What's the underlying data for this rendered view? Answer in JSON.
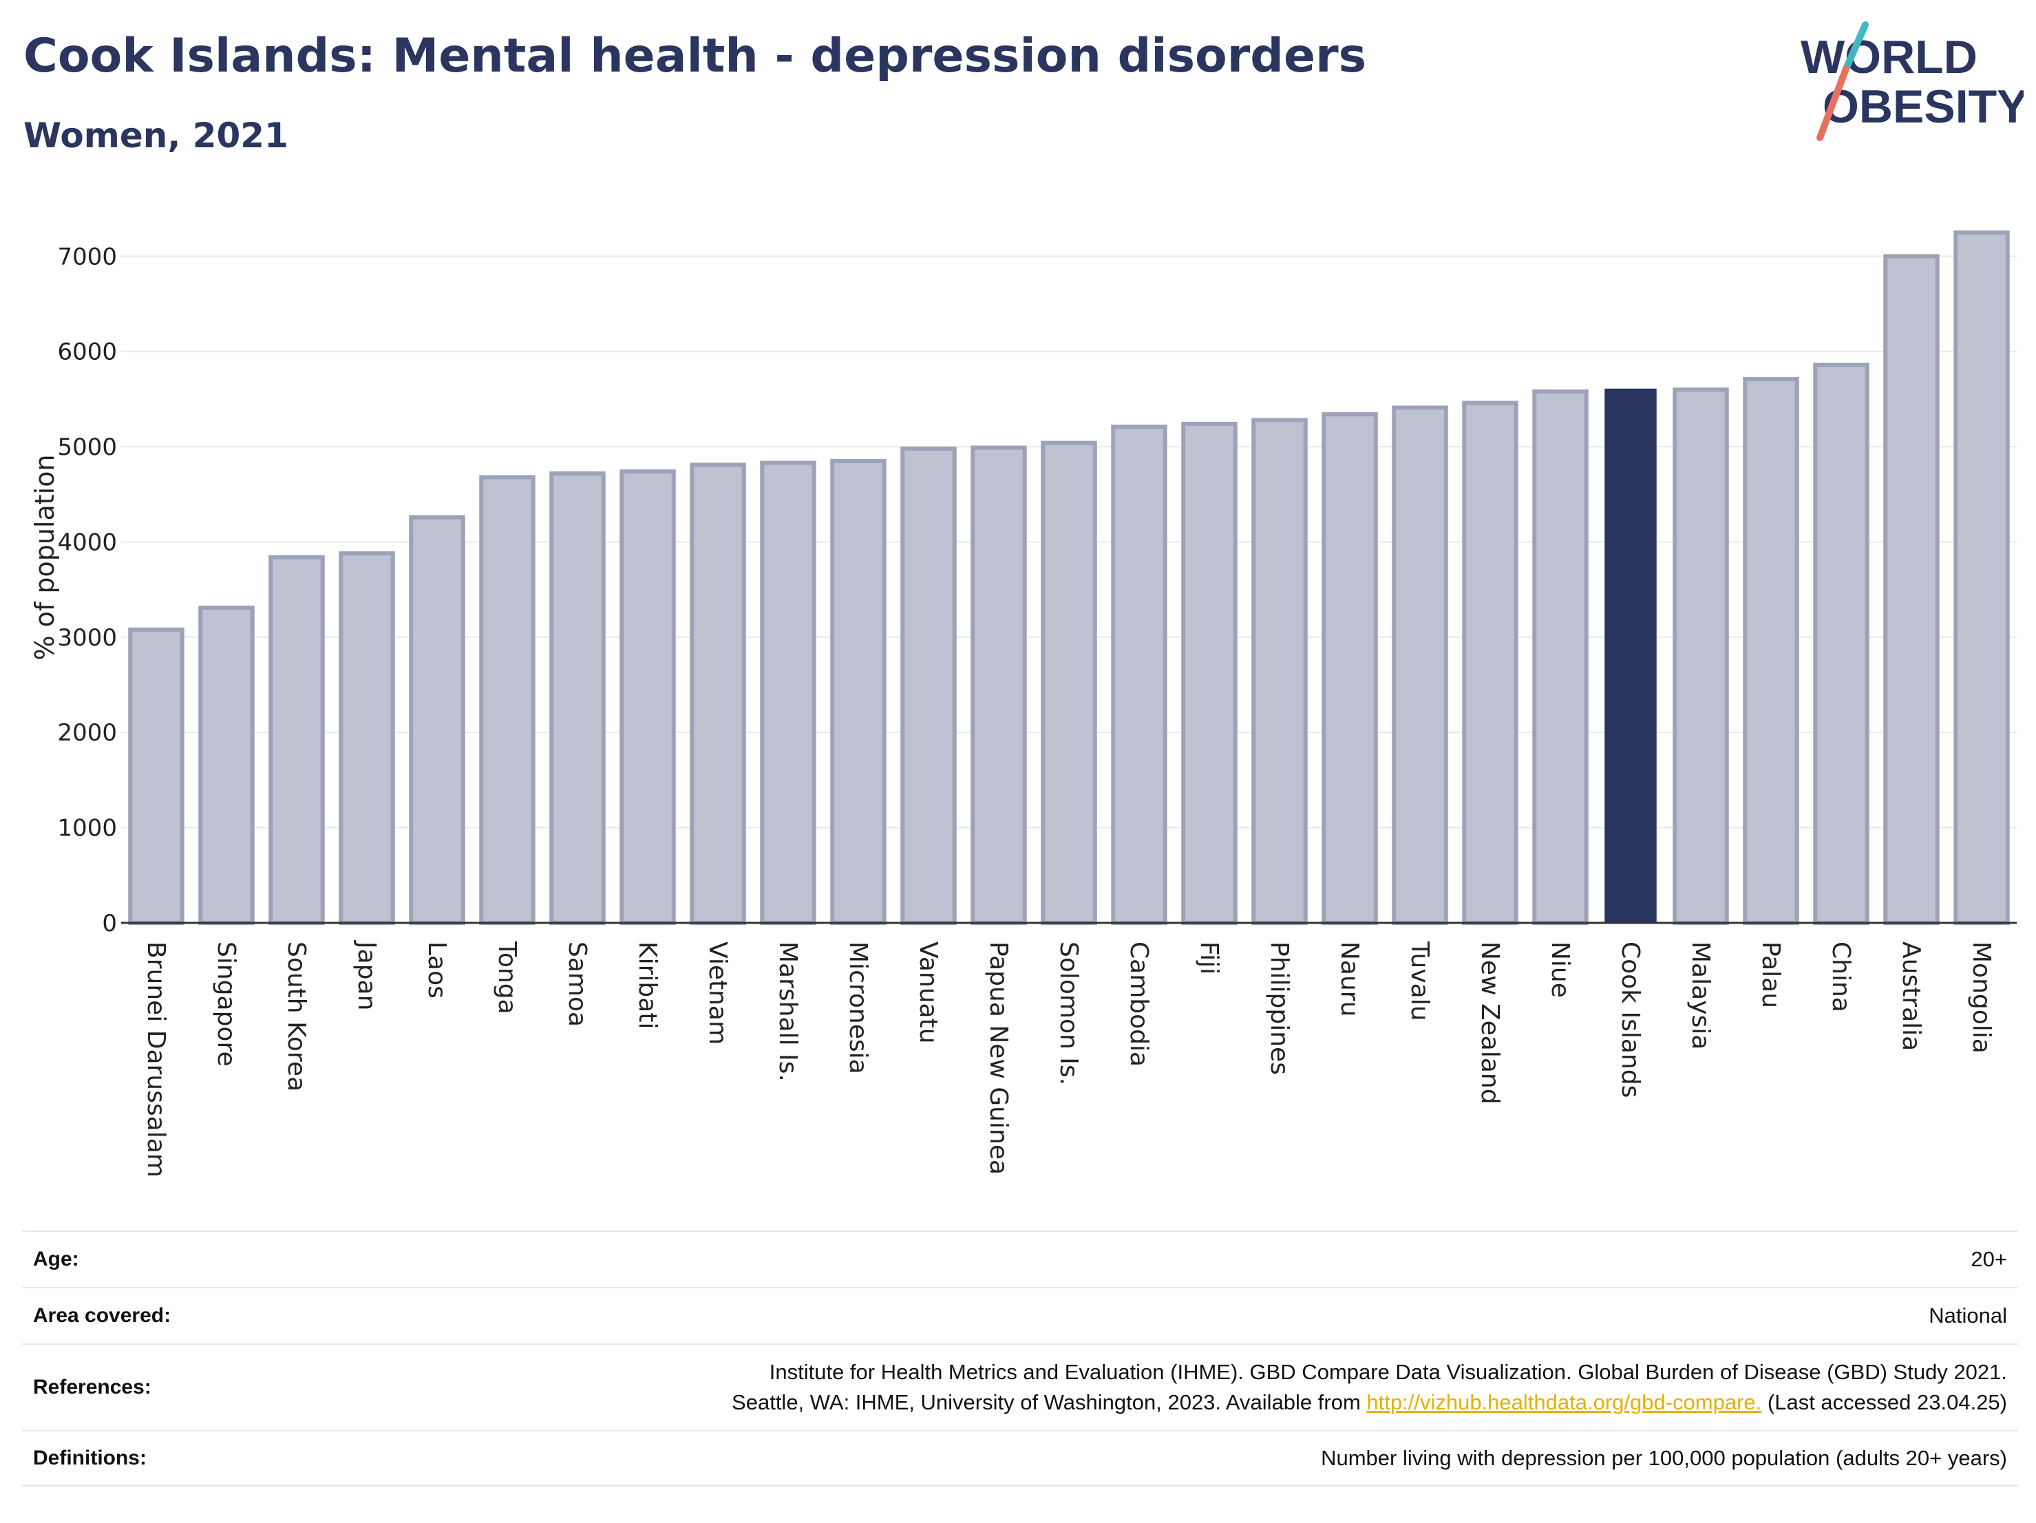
{
  "title": "Cook Islands: Mental health - depression disorders",
  "subtitle": "Women, 2021",
  "logo": {
    "line1": "WORLD",
    "line2": "OBESITY"
  },
  "colors": {
    "bar": "#bfc2d0",
    "bar_border": "#9da2b8",
    "highlight": "#29345e",
    "text": "#2a3560",
    "link": "#e6b000"
  },
  "chart_data": {
    "type": "bar",
    "categories": [
      "Brunei Darussalam",
      "Singapore",
      "South Korea",
      "Japan",
      "Laos",
      "Tonga",
      "Samoa",
      "Kiribati",
      "Vietnam",
      "Marshall Is.",
      "Micronesia",
      "Vanuatu",
      "Papua New Guinea",
      "Solomon Is.",
      "Cambodia",
      "Fiji",
      "Philippines",
      "Nauru",
      "Tuvalu",
      "New Zealand",
      "Niue",
      "Cook Islands",
      "Malaysia",
      "Palau",
      "China",
      "Australia",
      "Mongolia"
    ],
    "values": [
      3080,
      3310,
      3840,
      3880,
      4260,
      4680,
      4720,
      4740,
      4810,
      4830,
      4850,
      4980,
      4990,
      5040,
      5210,
      5240,
      5280,
      5340,
      5410,
      5460,
      5580,
      5610,
      5600,
      5710,
      5860,
      7000,
      7250
    ],
    "highlight": "Cook Islands",
    "ylabel": "% of population",
    "ylim": [
      0,
      7400
    ],
    "yticks": [
      0,
      1000,
      2000,
      3000,
      4000,
      5000,
      6000,
      7000
    ],
    "grid": true
  },
  "info": {
    "age_label": "Age:",
    "age_value": "20+",
    "area_label": "Area covered:",
    "area_value": "National",
    "ref_label": "References:",
    "ref_line1": "Institute for Health Metrics and Evaluation (IHME). GBD Compare Data Visualization. Global Burden of Disease (GBD) Study 2021.",
    "ref_line2_pre": "Seattle, WA: IHME, University of Washington, 2023. Available from ",
    "ref_link": "http://vizhub.healthdata.org/gbd-compare.",
    "ref_line2_post": " (Last accessed 23.04.25)",
    "def_label": "Definitions:",
    "def_value": "Number living with depression per 100,000 population (adults 20+ years)"
  }
}
